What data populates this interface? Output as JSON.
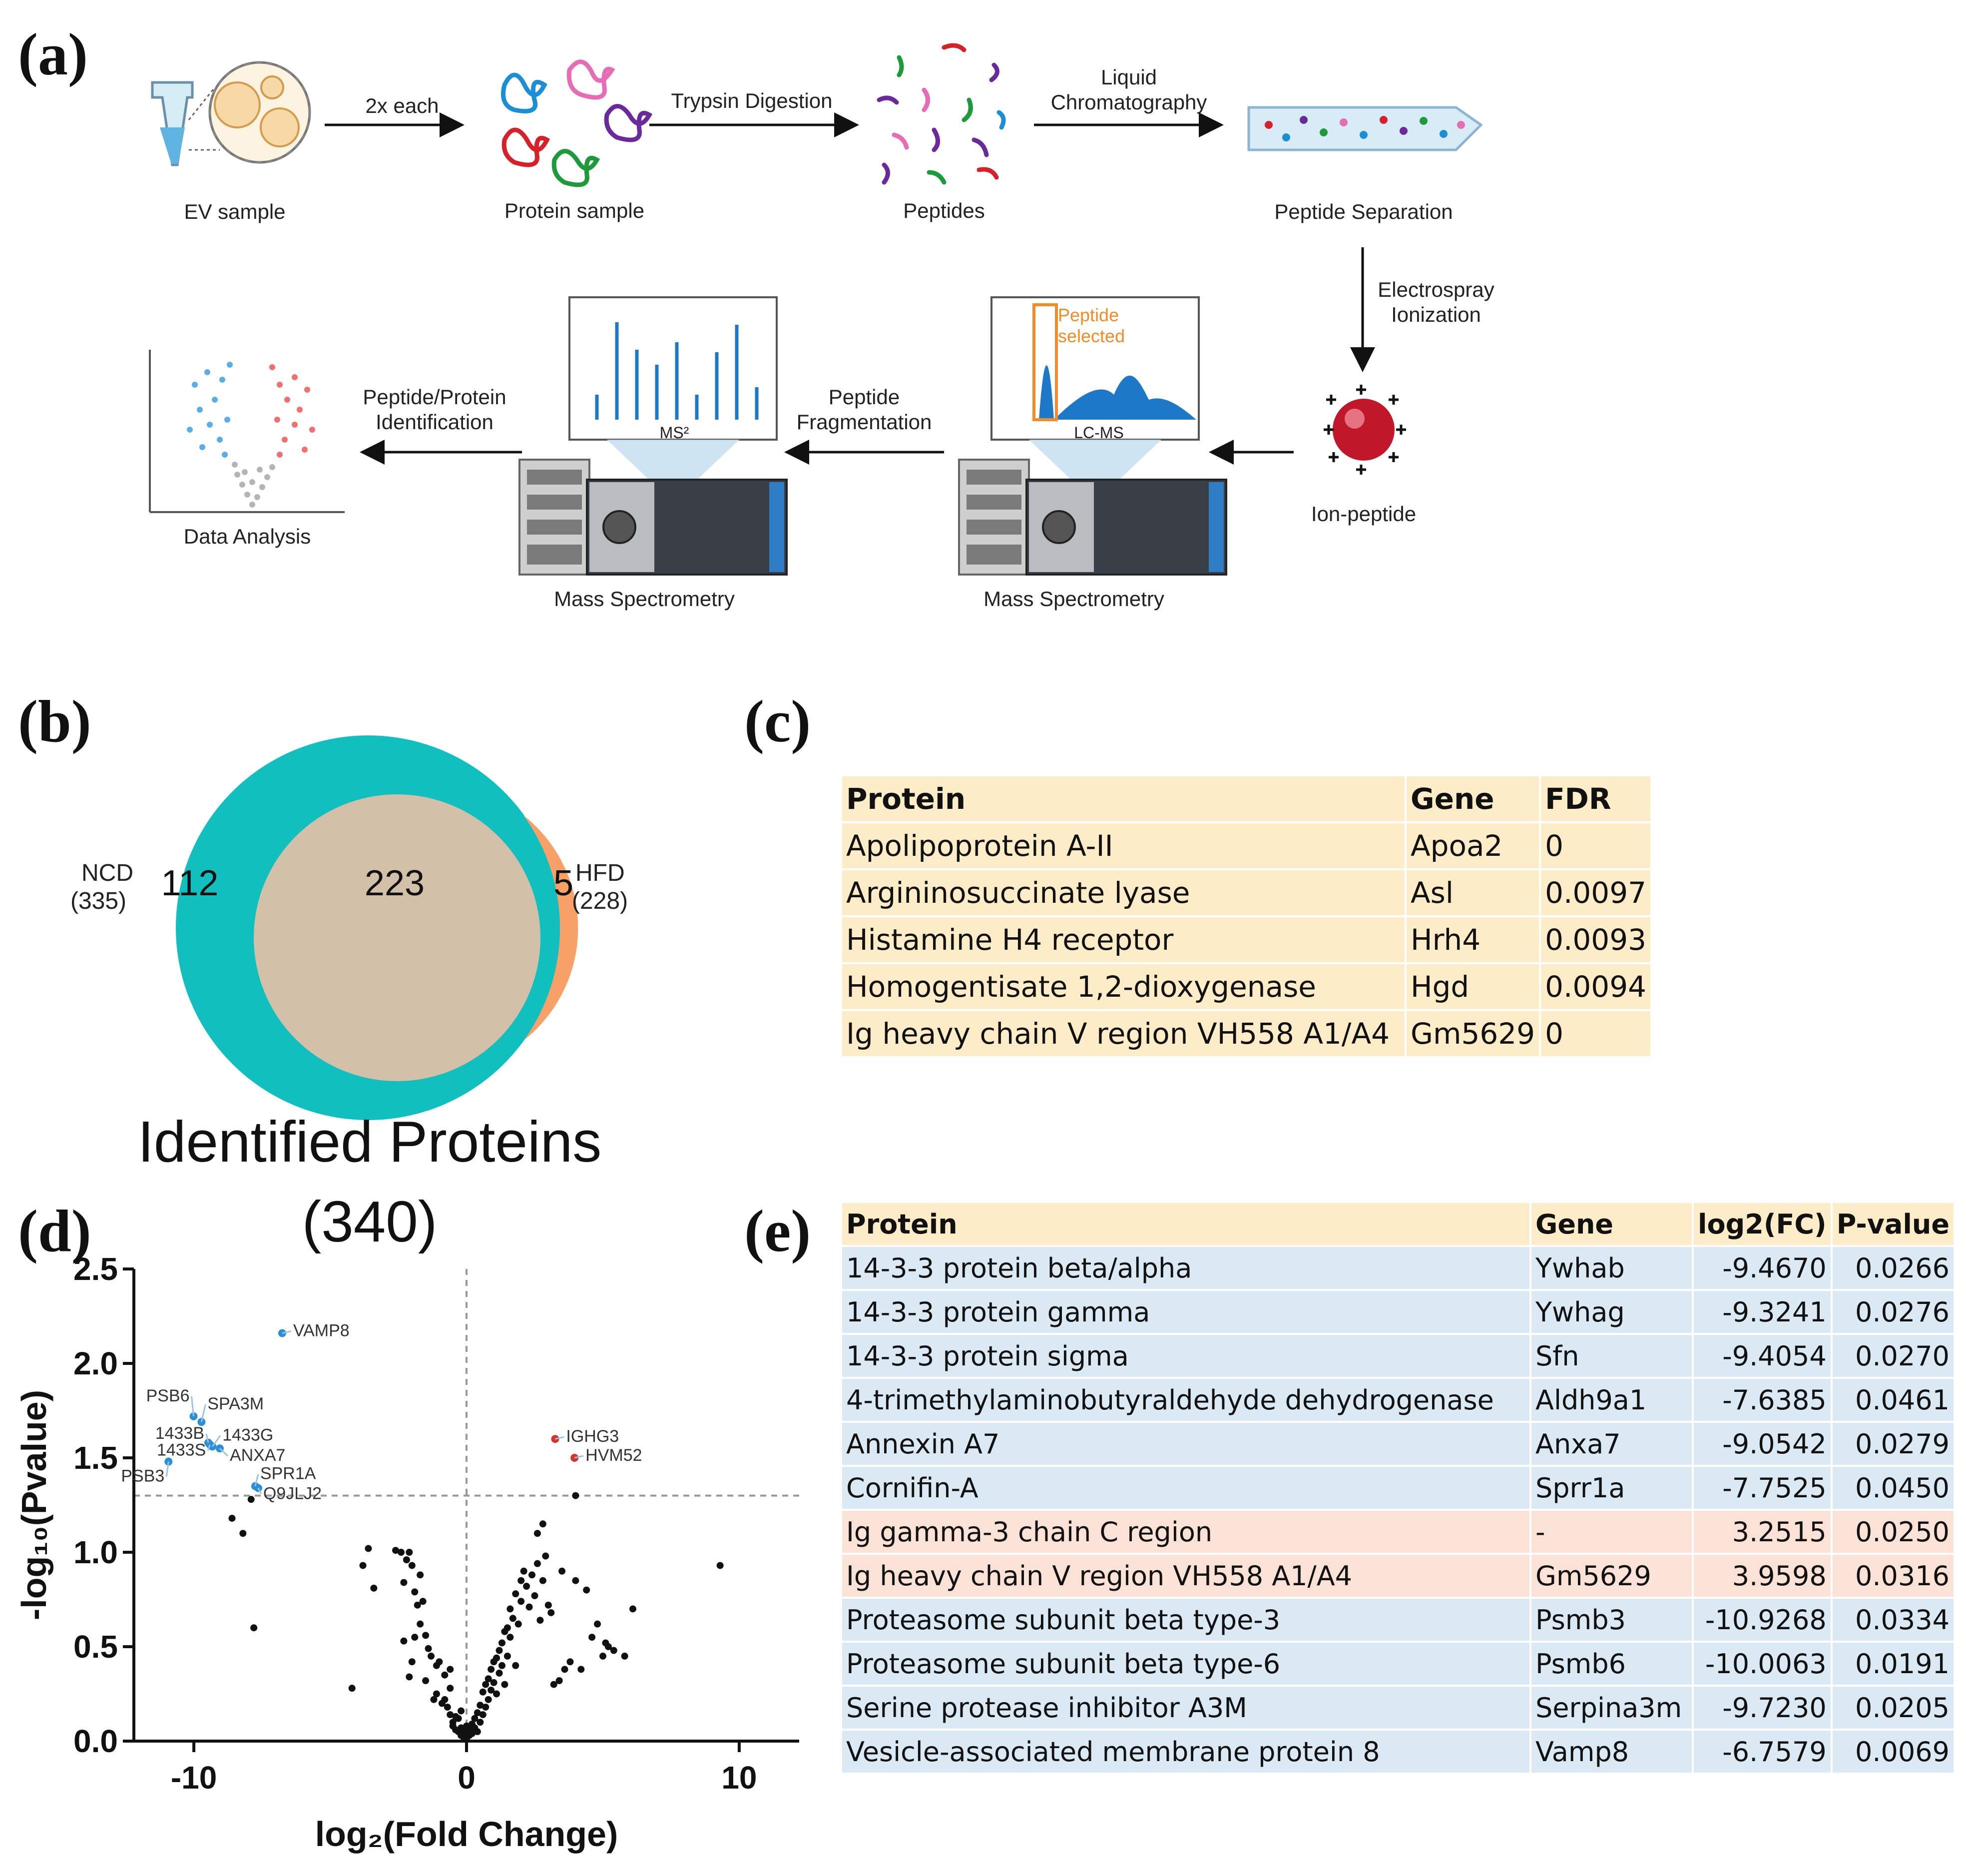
{
  "panels": {
    "a": "(a)",
    "b": "(b)",
    "c": "(c)",
    "d": "(d)",
    "e": "(e)"
  },
  "workflow": {
    "ev_sample": "EV sample",
    "arrow_2x": "2x each",
    "protein_sample": "Protein sample",
    "trypsin": "Trypsin Digestion",
    "peptides": "Peptides",
    "lc_line1": "Liquid",
    "lc_line2": "Chromatography",
    "peptide_separation": "Peptide Separation",
    "esi_line1": "Electrospray",
    "esi_line2": "Ionization",
    "ion_peptide": "Ion-peptide",
    "peptide_selected_line1": "Peptide",
    "peptide_selected_line2": "selected",
    "lcms": "LC-MS",
    "ms_left": "Mass Spectrometry",
    "ms_right": "Mass Spectrometry",
    "frag_line1": "Peptide",
    "frag_line2": "Fragmentation",
    "ms2": "MS²",
    "id_line1": "Peptide/Protein",
    "id_line2": "Identification",
    "data_analysis": "Data Analysis",
    "colors": {
      "blue": "#2a7ab8",
      "orange": "#f28c28",
      "red": "#c0172b",
      "text": "#222222"
    }
  },
  "venn": {
    "ncd_label": "NCD",
    "ncd_total": "(335)",
    "hfd_label": "HFD",
    "hfd_total": "(228)",
    "ncd_only": "112",
    "overlap": "223",
    "hfd_only": "5",
    "title": "Identified Proteins",
    "total": "(340)",
    "colors": {
      "ncd": "#12bfbf",
      "overlap": "#d3c0a8",
      "hfd": "#f7a068"
    }
  },
  "table_c": {
    "headers": [
      "Protein",
      "Gene",
      "FDR"
    ],
    "rows": [
      [
        "Apolipoprotein A-II",
        "Apoa2",
        "0"
      ],
      [
        "Argininosuccinate lyase",
        "Asl",
        "0.0097"
      ],
      [
        "Histamine H4 receptor",
        "Hrh4",
        "0.0093"
      ],
      [
        "Homogentisate 1,2-dioxygenase",
        "Hgd",
        "0.0094"
      ],
      [
        "Ig heavy chain V region VH558 A1/A4",
        "Gm5629",
        "0"
      ]
    ]
  },
  "table_e": {
    "headers": [
      "Protein",
      "Gene",
      "log2(FC)",
      "P-value"
    ],
    "rows": [
      [
        "14-3-3 protein beta/alpha",
        "Ywhab",
        "-9.4670",
        "0.0266"
      ],
      [
        "14-3-3 protein gamma",
        "Ywhag",
        "-9.3241",
        "0.0276"
      ],
      [
        "14-3-3 protein sigma",
        "Sfn",
        "-9.4054",
        "0.0270"
      ],
      [
        "4-trimethylaminobutyraldehyde dehydrogenase",
        "Aldh9a1",
        "-7.6385",
        "0.0461"
      ],
      [
        "Annexin A7",
        "Anxa7",
        "-9.0542",
        "0.0279"
      ],
      [
        "Cornifin-A",
        "Sprr1a",
        "-7.7525",
        "0.0450"
      ],
      [
        "Ig gamma-3 chain C region",
        "-",
        "3.2515",
        "0.0250"
      ],
      [
        "Ig heavy chain V region VH558 A1/A4",
        "Gm5629",
        "3.9598",
        "0.0316"
      ],
      [
        "Proteasome subunit beta type-3",
        "Psmb3",
        "-10.9268",
        "0.0334"
      ],
      [
        "Proteasome subunit beta type-6",
        "Psmb6",
        "-10.0063",
        "0.0191"
      ],
      [
        "Serine protease inhibitor A3M",
        "Serpina3m",
        "-9.7230",
        "0.0205"
      ],
      [
        "Vesicle-associated membrane protein 8",
        "Vamp8",
        "-6.7579",
        "0.0069"
      ]
    ],
    "row_kind": [
      "down",
      "down",
      "down",
      "down",
      "down",
      "down",
      "up",
      "up",
      "down",
      "down",
      "down",
      "down"
    ]
  },
  "chart_data": {
    "type": "scatter",
    "xlabel": "log₂(Fold Change)",
    "ylabel": "-log₁₀(Pvalue)",
    "xlim": [
      -12.2,
      12.2
    ],
    "ylim": [
      0,
      2.5
    ],
    "xticks": [
      -10,
      0,
      10
    ],
    "yticks": [
      0.0,
      0.5,
      1.0,
      1.5,
      2.0,
      2.5
    ],
    "ytick_labels": [
      "0.0",
      "0.5",
      "1.0",
      "1.5",
      "2.0",
      "2.5"
    ],
    "xtick_labels": [
      "-10",
      "0",
      "10"
    ],
    "threshold_y": 1.3,
    "vline_x": 0,
    "colors": {
      "down": "#2b8fd6",
      "up": "#d8342b",
      "ns": "#111111"
    },
    "labeled_points": [
      {
        "label": "VAMP8",
        "x": -6.76,
        "y": 2.16,
        "group": "down"
      },
      {
        "label": "PSB6",
        "x": -10.01,
        "y": 1.72,
        "group": "down"
      },
      {
        "label": "SPA3M",
        "x": -9.72,
        "y": 1.69,
        "group": "down"
      },
      {
        "label": "1433B",
        "x": -9.47,
        "y": 1.58,
        "group": "down"
      },
      {
        "label": "1433G",
        "x": -9.32,
        "y": 1.56,
        "group": "down"
      },
      {
        "label": "1433S",
        "x": -9.41,
        "y": 1.57,
        "group": "down"
      },
      {
        "label": "ANXA7",
        "x": -9.05,
        "y": 1.55,
        "group": "down"
      },
      {
        "label": "PSB3",
        "x": -10.93,
        "y": 1.48,
        "group": "down"
      },
      {
        "label": "SPR1A",
        "x": -7.75,
        "y": 1.35,
        "group": "down"
      },
      {
        "label": "Q9JLJ2",
        "x": -7.64,
        "y": 1.34,
        "group": "down"
      },
      {
        "label": "IGHG3",
        "x": 3.25,
        "y": 1.6,
        "group": "up"
      },
      {
        "label": "HVM52",
        "x": 3.96,
        "y": 1.5,
        "group": "up"
      }
    ],
    "ns_points": [
      [
        -8.6,
        1.18
      ],
      [
        -8.2,
        1.1
      ],
      [
        -7.9,
        1.28
      ],
      [
        -7.8,
        0.6
      ],
      [
        -4.2,
        0.28
      ],
      [
        -3.8,
        0.93
      ],
      [
        -3.6,
        1.02
      ],
      [
        -3.4,
        0.81
      ],
      [
        -2.6,
        1.01
      ],
      [
        -2.4,
        1.0
      ],
      [
        -2.3,
        0.84
      ],
      [
        -2.2,
        0.96
      ],
      [
        -2.1,
        1.0
      ],
      [
        -2.0,
        0.93
      ],
      [
        -1.9,
        0.79
      ],
      [
        -1.9,
        0.55
      ],
      [
        -2.3,
        0.53
      ],
      [
        -2.0,
        0.42
      ],
      [
        -2.1,
        0.34
      ],
      [
        -1.8,
        0.72
      ],
      [
        -1.7,
        0.88
      ],
      [
        -1.7,
        0.62
      ],
      [
        -1.6,
        0.74
      ],
      [
        -1.5,
        0.56
      ],
      [
        -1.5,
        0.32
      ],
      [
        -1.4,
        0.49
      ],
      [
        -1.3,
        0.45
      ],
      [
        -1.2,
        0.22
      ],
      [
        -1.1,
        0.4
      ],
      [
        -1.1,
        0.25
      ],
      [
        -1.0,
        0.42
      ],
      [
        -0.9,
        0.2
      ],
      [
        -0.8,
        0.35
      ],
      [
        -0.8,
        0.22
      ],
      [
        -0.7,
        0.18
      ],
      [
        -0.6,
        0.14
      ],
      [
        -0.6,
        0.28
      ],
      [
        -0.5,
        0.1
      ],
      [
        -0.5,
        0.08
      ],
      [
        -0.4,
        0.06
      ],
      [
        -0.4,
        0.13
      ],
      [
        -0.3,
        0.05
      ],
      [
        -0.3,
        0.12
      ],
      [
        -0.2,
        0.03
      ],
      [
        -0.2,
        0.07
      ],
      [
        -0.1,
        0.02
      ],
      [
        -0.1,
        0.05
      ],
      [
        0.0,
        0.01
      ],
      [
        0.1,
        0.03
      ],
      [
        0.1,
        0.06
      ],
      [
        0.2,
        0.04
      ],
      [
        0.2,
        0.09
      ],
      [
        0.3,
        0.07
      ],
      [
        0.3,
        0.12
      ],
      [
        0.4,
        0.05
      ],
      [
        0.4,
        0.15
      ],
      [
        0.5,
        0.1
      ],
      [
        0.5,
        0.19
      ],
      [
        0.6,
        0.14
      ],
      [
        0.6,
        0.26
      ],
      [
        0.7,
        0.18
      ],
      [
        0.7,
        0.3
      ],
      [
        0.8,
        0.22
      ],
      [
        0.8,
        0.33
      ],
      [
        0.9,
        0.27
      ],
      [
        0.9,
        0.38
      ],
      [
        1.0,
        0.31
      ],
      [
        1.0,
        0.42
      ],
      [
        1.1,
        0.25
      ],
      [
        1.1,
        0.44
      ],
      [
        1.2,
        0.36
      ],
      [
        1.2,
        0.48
      ],
      [
        1.3,
        0.4
      ],
      [
        1.3,
        0.52
      ],
      [
        1.4,
        0.3
      ],
      [
        1.5,
        0.6
      ],
      [
        1.5,
        0.45
      ],
      [
        1.6,
        0.55
      ],
      [
        1.6,
        0.7
      ],
      [
        1.7,
        0.65
      ],
      [
        1.8,
        0.78
      ],
      [
        1.8,
        0.4
      ],
      [
        1.9,
        0.62
      ],
      [
        2.0,
        0.85
      ],
      [
        2.0,
        0.74
      ],
      [
        2.1,
        0.9
      ],
      [
        2.2,
        0.82
      ],
      [
        2.3,
        0.71
      ],
      [
        2.4,
        0.88
      ],
      [
        2.5,
        0.77
      ],
      [
        2.6,
        0.94
      ],
      [
        2.7,
        0.64
      ],
      [
        2.8,
        0.85
      ],
      [
        2.9,
        0.98
      ],
      [
        3.0,
        0.72
      ],
      [
        3.1,
        0.68
      ],
      [
        3.2,
        0.3
      ],
      [
        3.4,
        0.32
      ],
      [
        3.5,
        0.9
      ],
      [
        3.6,
        0.38
      ],
      [
        3.8,
        0.42
      ],
      [
        4.0,
        0.85
      ],
      [
        4.2,
        0.38
      ],
      [
        4.4,
        0.8
      ],
      [
        4.6,
        0.55
      ],
      [
        4.8,
        0.62
      ],
      [
        5.0,
        0.45
      ],
      [
        5.1,
        0.52
      ],
      [
        5.2,
        0.5
      ],
      [
        5.4,
        0.48
      ],
      [
        5.8,
        0.45
      ],
      [
        6.1,
        0.7
      ],
      [
        2.6,
        1.1
      ],
      [
        2.8,
        1.15
      ],
      [
        4.0,
        1.3
      ],
      [
        9.3,
        0.93
      ],
      [
        -0.2,
        0.16
      ],
      [
        0.0,
        0.08
      ],
      [
        -0.6,
        0.38
      ],
      [
        1.4,
        0.58
      ]
    ]
  }
}
